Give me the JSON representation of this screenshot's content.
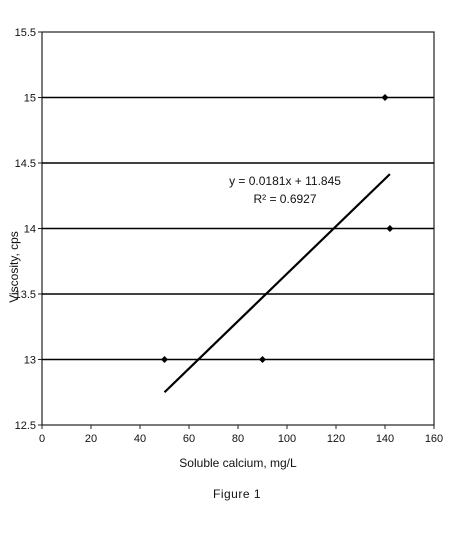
{
  "figure_caption": "Figure 1",
  "chart_data": {
    "type": "scatter",
    "xlabel": "Soluble calcium, mg/L",
    "ylabel": "Viscosity, cps",
    "xlim": [
      0,
      160
    ],
    "ylim": [
      12.5,
      15.5
    ],
    "x_ticks": [
      "0",
      "20",
      "40",
      "60",
      "80",
      "100",
      "120",
      "140",
      "160"
    ],
    "y_ticks": [
      "12.5",
      "13",
      "13.5",
      "14",
      "14.5",
      "15",
      "15.5"
    ],
    "grid": "horizontal",
    "points": [
      {
        "x": 50,
        "y": 13.0
      },
      {
        "x": 90,
        "y": 13.0
      },
      {
        "x": 140,
        "y": 15.0
      },
      {
        "x": 142,
        "y": 14.0
      }
    ],
    "trendline": {
      "type": "linear",
      "slope": 0.0181,
      "intercept": 11.845,
      "x_range": [
        50,
        142
      ],
      "equation_label": "y = 0.0181x + 11.845",
      "r2_label": "R² = 0.6927"
    }
  }
}
